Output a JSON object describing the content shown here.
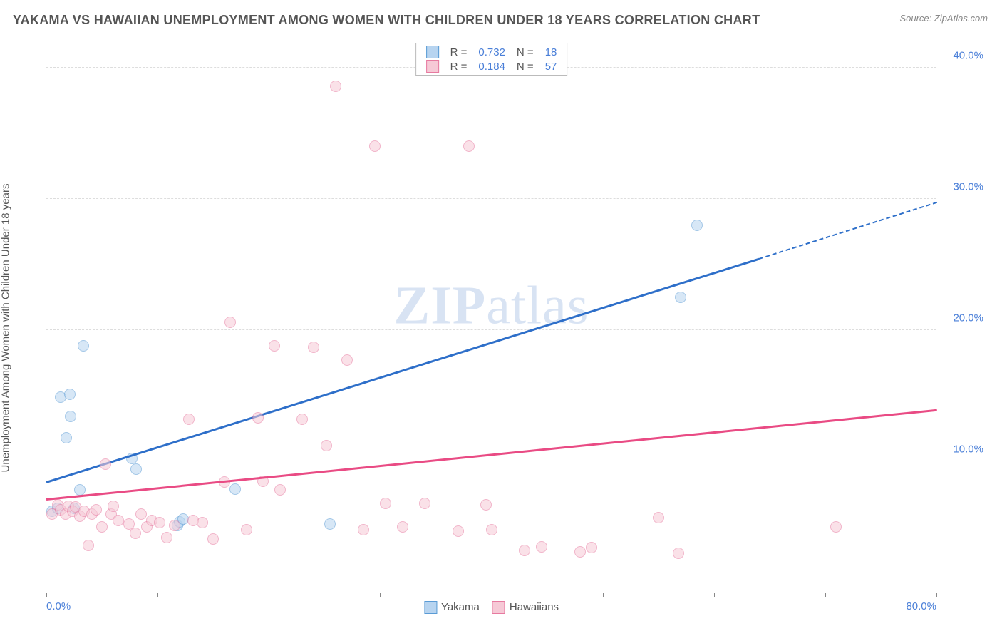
{
  "title": "YAKAMA VS HAWAIIAN UNEMPLOYMENT AMONG WOMEN WITH CHILDREN UNDER 18 YEARS CORRELATION CHART",
  "source": "Source: ZipAtlas.com",
  "ylabel": "Unemployment Among Women with Children Under 18 years",
  "watermark_a": "ZIP",
  "watermark_b": "atlas",
  "chart": {
    "type": "scatter",
    "xlim": [
      0,
      80
    ],
    "ylim": [
      0,
      42
    ],
    "xticks": [
      0,
      10,
      20,
      30,
      40,
      50,
      60,
      70,
      80
    ],
    "xtick_labels_shown": {
      "0": "0.0%",
      "80": "80.0%"
    },
    "yticks": [
      10,
      20,
      30,
      40
    ],
    "ytick_labels": {
      "10": "10.0%",
      "20": "20.0%",
      "30": "30.0%",
      "40": "40.0%"
    },
    "grid_color": "#dddddd",
    "background_color": "#ffffff",
    "axis_color": "#888888",
    "axis_label_color": "#4a7fd8",
    "point_radius": 8,
    "point_opacity": 0.55,
    "series": [
      {
        "name": "Yakama",
        "fill": "#b7d4f0",
        "stroke": "#5a9bd5",
        "trend_color": "#2e6fc9",
        "trend_width": 2.5,
        "R": "0.732",
        "N": "18",
        "trend": {
          "x1": 0,
          "y1": 8.5,
          "x2": 64,
          "y2": 25.5,
          "dash_to_x": 80,
          "dash_to_y": 29.8
        },
        "points": [
          [
            0.5,
            6.2
          ],
          [
            1.0,
            6.4
          ],
          [
            1.3,
            14.9
          ],
          [
            2.1,
            15.1
          ],
          [
            1.8,
            11.8
          ],
          [
            2.2,
            13.4
          ],
          [
            2.5,
            6.4
          ],
          [
            3.0,
            7.8
          ],
          [
            3.3,
            18.8
          ],
          [
            7.7,
            10.2
          ],
          [
            8.1,
            9.4
          ],
          [
            11.8,
            5.1
          ],
          [
            12.0,
            5.4
          ],
          [
            12.3,
            5.6
          ],
          [
            17.0,
            7.9
          ],
          [
            57.0,
            22.5
          ],
          [
            58.5,
            28.0
          ],
          [
            25.5,
            5.2
          ]
        ]
      },
      {
        "name": "Hawaiians",
        "fill": "#f6c9d6",
        "stroke": "#e77aa0",
        "trend_color": "#e94b84",
        "trend_width": 2.5,
        "R": "0.184",
        "N": "57",
        "trend": {
          "x1": 0,
          "y1": 7.2,
          "x2": 80,
          "y2": 14.0
        },
        "points": [
          [
            0.5,
            6.0
          ],
          [
            1.0,
            6.7
          ],
          [
            1.3,
            6.3
          ],
          [
            1.7,
            6.0
          ],
          [
            2.0,
            6.6
          ],
          [
            2.4,
            6.2
          ],
          [
            2.6,
            6.5
          ],
          [
            3.0,
            5.8
          ],
          [
            3.4,
            6.2
          ],
          [
            3.8,
            3.6
          ],
          [
            4.1,
            6.0
          ],
          [
            4.5,
            6.3
          ],
          [
            5.0,
            5.0
          ],
          [
            5.3,
            9.8
          ],
          [
            5.8,
            6.0
          ],
          [
            6.0,
            6.6
          ],
          [
            6.5,
            5.5
          ],
          [
            7.4,
            5.2
          ],
          [
            8.0,
            4.5
          ],
          [
            8.5,
            6.0
          ],
          [
            9.0,
            5.0
          ],
          [
            9.5,
            5.5
          ],
          [
            10.2,
            5.3
          ],
          [
            10.8,
            4.2
          ],
          [
            11.5,
            5.1
          ],
          [
            12.8,
            13.2
          ],
          [
            13.2,
            5.5
          ],
          [
            14.0,
            5.3
          ],
          [
            15.0,
            4.1
          ],
          [
            16.0,
            8.4
          ],
          [
            16.5,
            20.6
          ],
          [
            18.0,
            4.8
          ],
          [
            19.0,
            13.3
          ],
          [
            19.5,
            8.5
          ],
          [
            20.5,
            18.8
          ],
          [
            21.0,
            7.8
          ],
          [
            23.0,
            13.2
          ],
          [
            24.0,
            18.7
          ],
          [
            25.2,
            11.2
          ],
          [
            26.0,
            38.6
          ],
          [
            27.0,
            17.7
          ],
          [
            28.5,
            4.8
          ],
          [
            29.5,
            34.0
          ],
          [
            30.5,
            6.8
          ],
          [
            32.0,
            5.0
          ],
          [
            34.0,
            6.8
          ],
          [
            37.0,
            4.7
          ],
          [
            38.0,
            34.0
          ],
          [
            39.5,
            6.7
          ],
          [
            40.0,
            4.8
          ],
          [
            43.0,
            3.2
          ],
          [
            44.5,
            3.5
          ],
          [
            48.0,
            3.1
          ],
          [
            49.0,
            3.4
          ],
          [
            55.0,
            5.7
          ],
          [
            56.8,
            3.0
          ],
          [
            71.0,
            5.0
          ]
        ]
      }
    ]
  },
  "legend_bottom": [
    {
      "swatch_fill": "#b7d4f0",
      "swatch_stroke": "#5a9bd5",
      "label": "Yakama"
    },
    {
      "swatch_fill": "#f6c9d6",
      "swatch_stroke": "#e77aa0",
      "label": "Hawaiians"
    }
  ]
}
